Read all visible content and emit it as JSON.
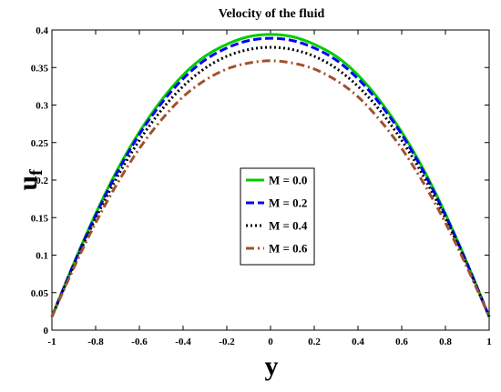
{
  "chart_data": {
    "type": "line",
    "title": "Velocity of the fluid",
    "xlabel": "y",
    "ylabel": "u",
    "ylabel_subscript": "f",
    "xlim": [
      -1,
      1
    ],
    "ylim": [
      0,
      0.4
    ],
    "xticks": [
      "-1",
      "-0.8",
      "-0.6",
      "-0.4",
      "-0.2",
      "0",
      "0.2",
      "0.4",
      "0.6",
      "0.8",
      "1"
    ],
    "yticks": [
      "0",
      "0.05",
      "0.1",
      "0.15",
      "0.2",
      "0.25",
      "0.3",
      "0.35",
      "0.4"
    ],
    "grid": false,
    "legend_position": "center-right",
    "x": [
      -1,
      -0.9,
      -0.8,
      -0.7,
      -0.6,
      -0.5,
      -0.4,
      -0.3,
      -0.2,
      -0.1,
      0,
      0.1,
      0.2,
      0.3,
      0.4,
      0.5,
      0.6,
      0.7,
      0.8,
      0.9,
      1
    ],
    "series": [
      {
        "name": "M = 0.0",
        "color": "#00cc00",
        "dash": "solid",
        "values": [
          0.018,
          0.089,
          0.155,
          0.214,
          0.264,
          0.306,
          0.34,
          0.365,
          0.381,
          0.391,
          0.394,
          0.391,
          0.381,
          0.365,
          0.34,
          0.306,
          0.264,
          0.214,
          0.155,
          0.089,
          0.018
        ]
      },
      {
        "name": "M = 0.2",
        "color": "#0000ff",
        "dash": "dashed",
        "values": [
          0.018,
          0.088,
          0.153,
          0.211,
          0.261,
          0.302,
          0.335,
          0.36,
          0.376,
          0.386,
          0.389,
          0.386,
          0.376,
          0.36,
          0.335,
          0.302,
          0.261,
          0.211,
          0.153,
          0.088,
          0.018
        ]
      },
      {
        "name": "M = 0.4",
        "color": "#000000",
        "dash": "dotted",
        "values": [
          0.018,
          0.086,
          0.149,
          0.205,
          0.253,
          0.293,
          0.325,
          0.349,
          0.365,
          0.374,
          0.377,
          0.374,
          0.365,
          0.349,
          0.325,
          0.293,
          0.253,
          0.205,
          0.149,
          0.086,
          0.018
        ]
      },
      {
        "name": "M = 0.6",
        "color": "#a0522d",
        "dash": "dashdot",
        "values": [
          0.018,
          0.083,
          0.143,
          0.196,
          0.242,
          0.28,
          0.311,
          0.333,
          0.348,
          0.356,
          0.359,
          0.356,
          0.348,
          0.333,
          0.311,
          0.28,
          0.242,
          0.196,
          0.143,
          0.083,
          0.018
        ]
      }
    ]
  }
}
